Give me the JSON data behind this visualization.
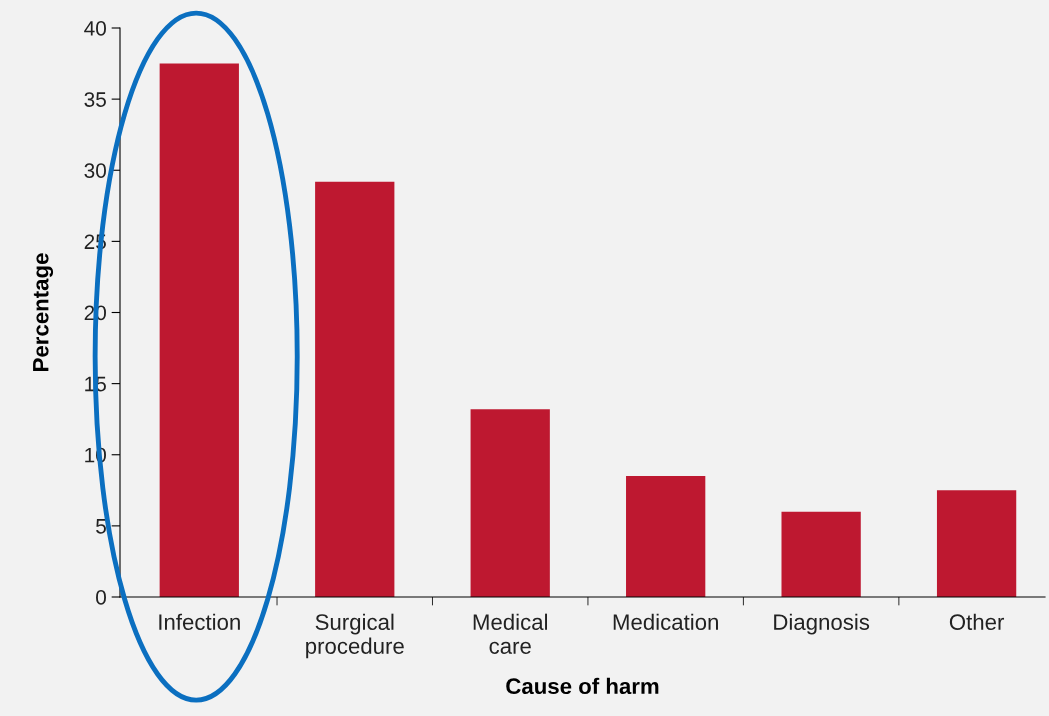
{
  "chart_data": {
    "type": "bar",
    "xlabel": "Cause of harm",
    "ylabel": "Percentage",
    "categories": [
      "Infection",
      "Surgical\nprocedure",
      "Medical\ncare",
      "Medication",
      "Diagnosis",
      "Other"
    ],
    "values": [
      37.5,
      29.2,
      13.2,
      8.5,
      6.0,
      7.5
    ],
    "color": "#be1830",
    "ylim": [
      0,
      40
    ],
    "yticks": [
      0,
      5,
      10,
      15,
      20,
      25,
      30,
      35,
      40
    ],
    "grid": false,
    "legend": false
  }
}
